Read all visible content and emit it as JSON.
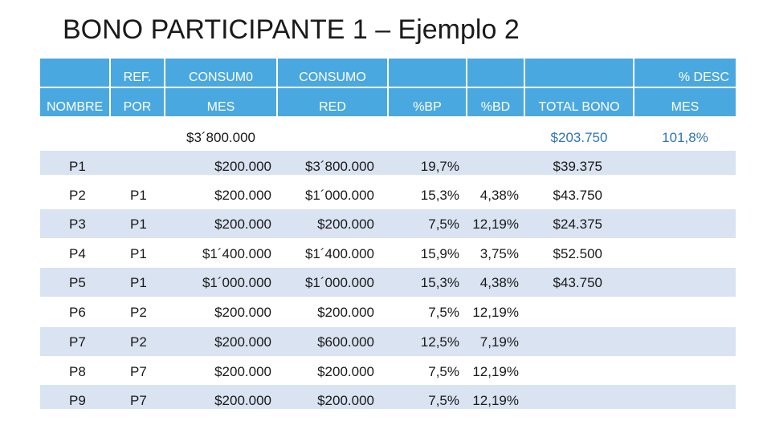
{
  "title": "BONO PARTICIPANTE 1 – Ejemplo 2",
  "colors": {
    "header_fill": "#4aa8e0",
    "band_fill": "#d9e3f1",
    "accent_text": "#2f75b5"
  },
  "header": {
    "nombre": "NOMBRE",
    "ref_line1": "REF.",
    "ref_line2": "POR",
    "consumo_mes_line1": "CONSUM0",
    "consumo_mes_line2": "MES",
    "consumo_red_line1": "CONSUMO",
    "consumo_red_line2": "RED",
    "bp": "%BP",
    "bd": "%BD",
    "total_bono": "TOTAL BONO",
    "desc_line1": "% DESC",
    "desc_line2": "MES"
  },
  "totals": {
    "consumo_mes": "$3´800.000",
    "total_bono": "$203.750",
    "desc_mes": "101,8%"
  },
  "rows": [
    {
      "nombre": "P1",
      "ref": "",
      "consumo_mes": "$200.000",
      "consumo_red": "$3´800.000",
      "bp": "19,7%",
      "bd": "",
      "total": "$39.375"
    },
    {
      "nombre": "P2",
      "ref": "P1",
      "consumo_mes": "$200.000",
      "consumo_red": "$1´000.000",
      "bp": "15,3%",
      "bd": "4,38%",
      "total": "$43.750"
    },
    {
      "nombre": "P3",
      "ref": "P1",
      "consumo_mes": "$200.000",
      "consumo_red": "$200.000",
      "bp": "7,5%",
      "bd": "12,19%",
      "total": "$24.375"
    },
    {
      "nombre": "P4",
      "ref": "P1",
      "consumo_mes": "$1´400.000",
      "consumo_red": "$1´400.000",
      "bp": "15,9%",
      "bd": "3,75%",
      "total": "$52.500"
    },
    {
      "nombre": "P5",
      "ref": "P1",
      "consumo_mes": "$1´000.000",
      "consumo_red": "$1´000.000",
      "bp": "15,3%",
      "bd": "4,38%",
      "total": "$43.750"
    },
    {
      "nombre": "P6",
      "ref": "P2",
      "consumo_mes": "$200.000",
      "consumo_red": "$200.000",
      "bp": "7,5%",
      "bd": "12,19%",
      "total": ""
    },
    {
      "nombre": "P7",
      "ref": "P2",
      "consumo_mes": "$200.000",
      "consumo_red": "$600.000",
      "bp": "12,5%",
      "bd": "7,19%",
      "total": ""
    },
    {
      "nombre": "P8",
      "ref": "P7",
      "consumo_mes": "$200.000",
      "consumo_red": "$200.000",
      "bp": "7,5%",
      "bd": "12,19%",
      "total": ""
    },
    {
      "nombre": "P9",
      "ref": "P7",
      "consumo_mes": "$200.000",
      "consumo_red": "$200.000",
      "bp": "7,5%",
      "bd": "12,19%",
      "total": ""
    }
  ]
}
